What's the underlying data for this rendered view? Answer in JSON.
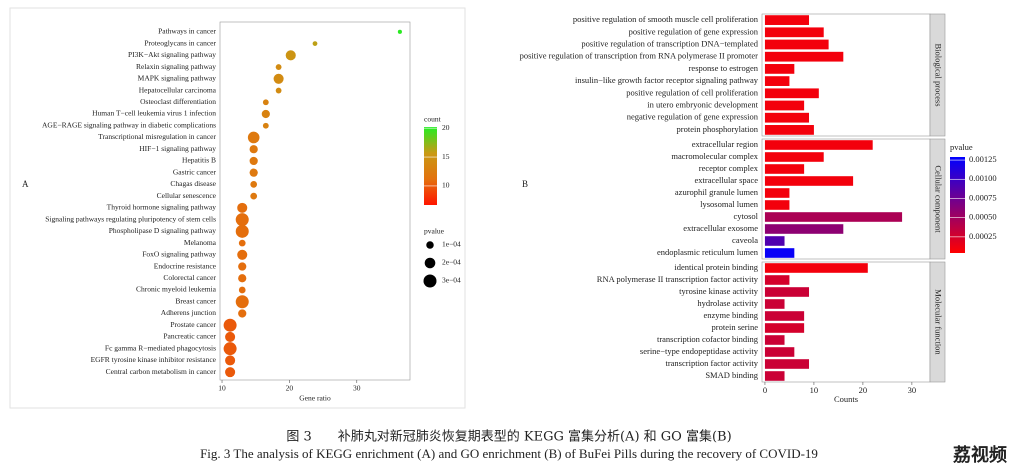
{
  "chart_data": [
    {
      "type": "dot",
      "panel_label": "A",
      "x_label": "Gene ratio",
      "categories": [
        "Pathways in cancer",
        "Proteoglycans in cancer",
        "PI3K−Akt signaling pathway",
        "Relaxin signaling pathway",
        "MAPK signaling pathway",
        "Hepatocellular carcinoma",
        "Osteoclast differentiation",
        "Human T−cell leukemia virus 1 infection",
        "AGE−RAGE signaling pathway in diabetic complications",
        "Transcriptional misregulation in cancer",
        "HIF−1 signaling pathway",
        "Hepatitis B",
        "Gastric cancer",
        "Chagas disease",
        "Cellular senescence",
        "Thyroid hormone signaling pathway",
        "Signaling pathways regulating pluripotency of stem cells",
        "Phospholipase D signaling pathway",
        "Melanoma",
        "FoxO signaling pathway",
        "Endocrine resistance",
        "Colorectal cancer",
        "Chronic myeloid leukemia",
        "Breast cancer",
        "Adherens junction",
        "Prostate cancer",
        "Pancreatic cancer",
        "Fc gamma R−mediated phagocytosis",
        "EGFR tyrosine kinase inhibitor resistance",
        "Central carbon metabolism in cancer"
      ],
      "values": [
        36.4,
        23.8,
        20.2,
        18.4,
        18.4,
        18.4,
        16.5,
        16.5,
        16.5,
        14.7,
        14.7,
        14.7,
        14.7,
        14.7,
        14.7,
        13,
        13,
        13,
        13,
        13,
        13,
        13,
        13,
        13,
        13,
        11.2,
        11.2,
        11.2,
        11.2,
        11.2
      ],
      "count": [
        20,
        16,
        15,
        14,
        14,
        14,
        13,
        13,
        13,
        12,
        12,
        12,
        12,
        12,
        12,
        11,
        11,
        11,
        11,
        11,
        11,
        11,
        11,
        11,
        11,
        10,
        10,
        10,
        10,
        10
      ],
      "pvalue": [
        3e-05,
        4e-05,
        0.00018,
        6e-05,
        0.00018,
        6e-05,
        6e-05,
        0.00012,
        6e-05,
        0.00024,
        0.00012,
        0.00012,
        0.00012,
        8e-05,
        8e-05,
        0.00018,
        0.0003,
        0.0003,
        8e-05,
        0.00018,
        0.00012,
        0.00012,
        8e-05,
        0.0003,
        0.00012,
        0.0003,
        0.00018,
        0.0003,
        0.00018,
        0.00018
      ],
      "xlim": [
        9.7,
        37.9
      ],
      "xticks": [
        10,
        20,
        30
      ],
      "count_legend": {
        "title": "count",
        "lim": [
          6.7,
          20.2
        ],
        "ticks": [
          10,
          15,
          20
        ],
        "colors": [
          "#ff1500",
          "#e3720e",
          "#c89a14",
          "#22ee22"
        ]
      },
      "size_legend": {
        "title": "pvalue",
        "ticks": [
          {
            "value": 0.0001,
            "label": "1e−04"
          },
          {
            "value": 0.0002,
            "label": "2e−04"
          },
          {
            "value": 0.0003,
            "label": "3e−04"
          }
        ]
      }
    },
    {
      "type": "faceted-bar",
      "panel_label": "B",
      "x_label": "Counts",
      "facets": [
        {
          "name": "Biological process",
          "categories": [
            "positive regulation of smooth muscle cell proliferation",
            "positive regulation of gene expression",
            "positive regulation of transcription DNA−templated",
            "positive regulation of transcription from RNA polymerase II promoter",
            "response to estrogen",
            "insulin−like growth factor receptor signaling pathway",
            "positive regulation of cell proliferation",
            "in utero embryonic development",
            "negative regulation of gene expression",
            "protein phosphorylation"
          ],
          "values": [
            9,
            12,
            13,
            16,
            6,
            5,
            11,
            8,
            9,
            10
          ],
          "pvalue": [
            0.0001,
            0.0001,
            0.0001,
            0.0001,
            0.0001,
            0.0001,
            0.0001,
            0.0001,
            0.0001,
            0.0001
          ]
        },
        {
          "name": "Cellular component",
          "categories": [
            "extracellular region",
            "macromolecular complex",
            "receptor complex",
            "extracellular space",
            "azurophil granule lumen",
            "lysosomal lumen",
            "cytosol",
            "extracellular exosome",
            "caveola",
            "endoplasmic reticulum lumen"
          ],
          "values": [
            22,
            12,
            8,
            18,
            5,
            5,
            28,
            16,
            4,
            6
          ],
          "pvalue": [
            0.0001,
            0.0001,
            0.0001,
            0.0001,
            0.0001,
            0.0001,
            0.00045,
            0.0006,
            0.0009,
            0.00125
          ]
        },
        {
          "name": "Molecular function",
          "categories": [
            "identical protein binding",
            "RNA polymerase II transcription factor activity",
            "tyrosine kinase activity",
            "hydrolase activity",
            "enzyme binding",
            "protein serine",
            "transcription cofactor binding",
            "serine−type endopeptidase activity",
            "transcription factor activity",
            "SMAD binding"
          ],
          "values": [
            21,
            5,
            9,
            4,
            8,
            8,
            4,
            6,
            9,
            4
          ],
          "pvalue": [
            0.0001,
            0.00025,
            0.0003,
            0.0003,
            0.0003,
            0.00025,
            0.0003,
            0.0003,
            0.0003,
            0.0003
          ]
        }
      ],
      "xlim": [
        -0.6,
        33.7
      ],
      "xticks": [
        0,
        10,
        20,
        30
      ],
      "color_legend": {
        "title": "pvalue",
        "lim": [
          4e-05,
          0.00129
        ],
        "colors": [
          "#ff0000",
          "#0000ff"
        ],
        "ticks": [
          {
            "value": 0.00025,
            "label": "0.00025"
          },
          {
            "value": 0.0005,
            "label": "0.00050"
          },
          {
            "value": 0.00075,
            "label": "0.00075"
          },
          {
            "value": 0.001,
            "label": "0.00100"
          },
          {
            "value": 0.00125,
            "label": "0.00125"
          }
        ]
      }
    }
  ],
  "caption_zh": "图 3　　补肺丸对新冠肺炎恢复期表型的 KEGG 富集分析(A)  和 GO  富集(B)",
  "caption_en": "Fig. 3   The analysis of KEGG enrichment (A) and GO enrichment (B) of BuFei Pills during the recovery of COVID-19",
  "watermark": "荔视频"
}
